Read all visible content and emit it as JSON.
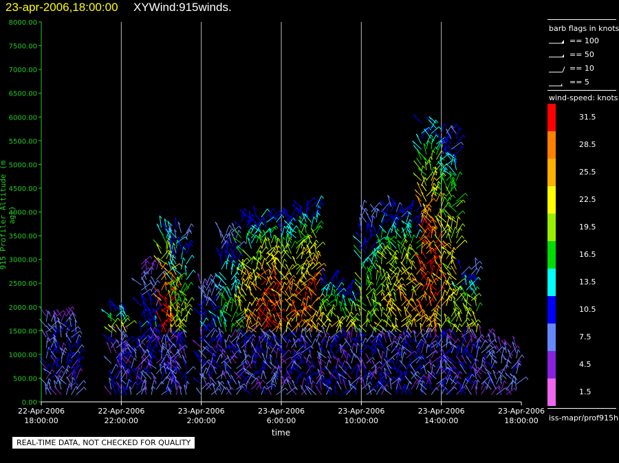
{
  "header": {
    "date_label": "23-apr-2006,18:00:00",
    "product_label": "XYWind:915winds."
  },
  "disclaimer": "REAL-TIME DATA, NOT CHECKED FOR QUALITY",
  "panel": {
    "barb_title": "barb flags in knots",
    "barb_items": [
      "== 100",
      "== 50",
      "== 10",
      "== 5"
    ],
    "speed_title": "wind-speed: knots",
    "speed_labels": [
      "31.5",
      "28.5",
      "25.5",
      "22.5",
      "19.5",
      "16.5",
      "13.5",
      "10.5",
      "7.5",
      "4.5",
      "1.5"
    ],
    "speed_colors": [
      "#ff0000",
      "#ff7f00",
      "#ffb000",
      "#ffff00",
      "#99ee00",
      "#00dd00",
      "#00ffff",
      "#0000ff",
      "#6688ff",
      "#8822dd",
      "#ee66ee"
    ],
    "source": "iss-mapr/prof915h"
  },
  "chart_data": {
    "type": "scatter",
    "title": "XYWind:915winds.",
    "xlabel": "time",
    "ylabel": "915 Profiler Altitude (m agl)",
    "ylim": [
      0,
      8000
    ],
    "yticks": [
      "0.00",
      "500.00",
      "1000.00",
      "1500.00",
      "2000.00",
      "2500.00",
      "3000.00",
      "3500.00",
      "4000.00",
      "4500.00",
      "5000.00",
      "5500.00",
      "6000.00",
      "6500.00",
      "7000.00",
      "7500.00",
      "8000.00"
    ],
    "xticks": [
      {
        "line1": "22-Apr-2006",
        "line2": "18:00:00"
      },
      {
        "line1": "22-Apr-2006",
        "line2": "22:00:00"
      },
      {
        "line1": "23-Apr-2006",
        "line2": "2:00:00"
      },
      {
        "line1": "23-Apr-2006",
        "line2": "6:00:00"
      },
      {
        "line1": "23-Apr-2006",
        "line2": "10:00:00"
      },
      {
        "line1": "23-Apr-2006",
        "line2": "14:00:00"
      },
      {
        "line1": "23-Apr-2006",
        "line2": "18:00:00"
      }
    ],
    "grid": "vertical",
    "color_scale": "wind-speed: knots",
    "columns": [
      {
        "time": "22-Apr-2006 18:30",
        "top_alt": 1900,
        "max_speed": 9
      },
      {
        "time": "22-Apr-2006 19:30",
        "top_alt": 1900,
        "max_speed": 10
      },
      {
        "time": "22-Apr-2006 22:00",
        "top_alt": 2000,
        "max_speed": 26
      },
      {
        "time": "22-Apr-2006 22:30",
        "top_alt": 1300,
        "max_speed": 24
      },
      {
        "time": "22-Apr-2006 23:30",
        "top_alt": 2900,
        "max_speed": 10
      },
      {
        "time": "23-Apr-2006 0:30",
        "top_alt": 3700,
        "max_speed": 31
      },
      {
        "time": "23-Apr-2006 1:00",
        "top_alt": 3600,
        "max_speed": 18
      },
      {
        "time": "23-Apr-2006 2:30",
        "top_alt": 2500,
        "max_speed": 12
      },
      {
        "time": "23-Apr-2006 3:30",
        "top_alt": 3600,
        "max_speed": 15
      },
      {
        "time": "23-Apr-2006 4:30",
        "top_alt": 3900,
        "max_speed": 25
      },
      {
        "time": "23-Apr-2006 5:30",
        "top_alt": 3900,
        "max_speed": 30
      },
      {
        "time": "23-Apr-2006 6:30",
        "top_alt": 3900,
        "max_speed": 26
      },
      {
        "time": "23-Apr-2006 7:30",
        "top_alt": 4200,
        "max_speed": 27
      },
      {
        "time": "23-Apr-2006 8:30",
        "top_alt": 2600,
        "max_speed": 24
      },
      {
        "time": "23-Apr-2006 9:30",
        "top_alt": 2400,
        "max_speed": 23
      },
      {
        "time": "23-Apr-2006 10:30",
        "top_alt": 4000,
        "max_speed": 17
      },
      {
        "time": "23-Apr-2006 11:30",
        "top_alt": 4200,
        "max_speed": 22
      },
      {
        "time": "23-Apr-2006 12:30",
        "top_alt": 4100,
        "max_speed": 24
      },
      {
        "time": "23-Apr-2006 13:30",
        "top_alt": 5900,
        "max_speed": 30
      },
      {
        "time": "23-Apr-2006 14:30",
        "top_alt": 5700,
        "max_speed": 22
      },
      {
        "time": "23-Apr-2006 15:30",
        "top_alt": 2800,
        "max_speed": 21
      },
      {
        "time": "23-Apr-2006 16:30",
        "top_alt": 1400,
        "max_speed": 8
      },
      {
        "time": "23-Apr-2006 17:30",
        "top_alt": 1200,
        "max_speed": 7
      }
    ]
  }
}
